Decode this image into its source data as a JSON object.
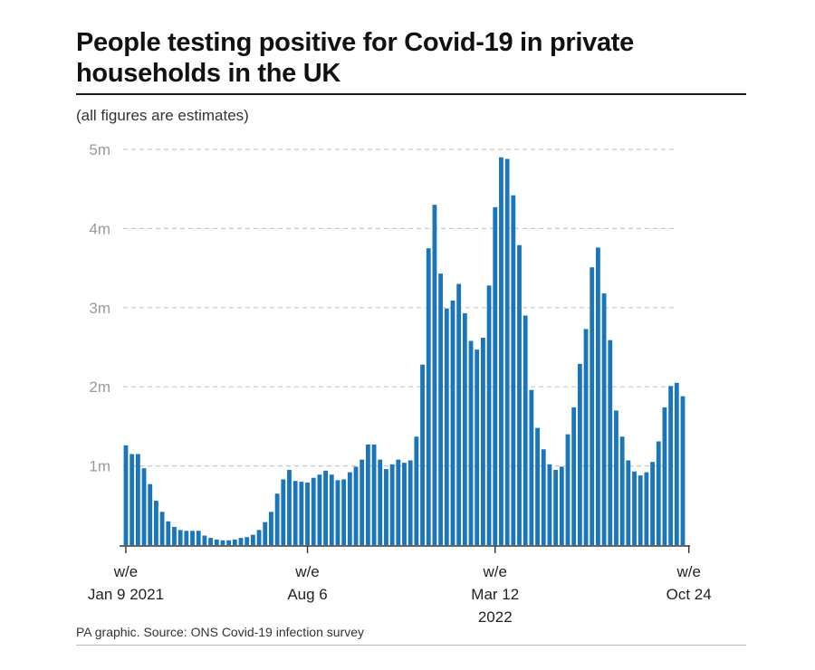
{
  "header": {
    "title": "People testing positive for Covid-19 in private households in the UK",
    "subtitle": "(all figures are estimates)"
  },
  "footer": {
    "source": "PA graphic. Source: ONS Covid-19 infection survey"
  },
  "colors": {
    "bar": "#1a75bb",
    "grid": "#c8c8c8",
    "axis": "#333333"
  },
  "chart_data": {
    "type": "bar",
    "title": "People testing positive for Covid-19 in private households in the UK",
    "subtitle": "(all figures are estimates)",
    "xlabel": "",
    "ylabel": "",
    "ylim": [
      0,
      5000000
    ],
    "yticks": [
      {
        "value": 1000000,
        "label": "1m"
      },
      {
        "value": 2000000,
        "label": "2m"
      },
      {
        "value": 3000000,
        "label": "3m"
      },
      {
        "value": 4000000,
        "label": "4m"
      },
      {
        "value": 5000000,
        "label": "5m"
      }
    ],
    "grid": true,
    "xtick_labels": [
      {
        "index": 0,
        "lines": [
          "w/e",
          "Jan 9 2021"
        ]
      },
      {
        "index": 30,
        "lines": [
          "w/e",
          "Aug 6"
        ]
      },
      {
        "index": 61,
        "lines": [
          "w/e",
          "Mar 12",
          "2022"
        ]
      },
      {
        "index": 93,
        "lines": [
          "w/e",
          "Oct 24"
        ]
      }
    ],
    "series": [
      {
        "name": "People testing positive",
        "values": [
          1260000,
          1150000,
          1150000,
          970000,
          770000,
          560000,
          420000,
          300000,
          230000,
          190000,
          180000,
          180000,
          180000,
          120000,
          90000,
          70000,
          60000,
          60000,
          70000,
          90000,
          100000,
          130000,
          190000,
          290000,
          420000,
          650000,
          830000,
          950000,
          810000,
          800000,
          790000,
          850000,
          890000,
          940000,
          890000,
          820000,
          830000,
          920000,
          990000,
          1080000,
          1270000,
          1270000,
          1080000,
          960000,
          1020000,
          1080000,
          1040000,
          1070000,
          1370000,
          2280000,
          3750000,
          4300000,
          3430000,
          2990000,
          3090000,
          3300000,
          2930000,
          2580000,
          2470000,
          2620000,
          3280000,
          4270000,
          4900000,
          4880000,
          4420000,
          3790000,
          2900000,
          1960000,
          1480000,
          1210000,
          1020000,
          950000,
          990000,
          1400000,
          1740000,
          2290000,
          2730000,
          3510000,
          3760000,
          3180000,
          2590000,
          1700000,
          1370000,
          1070000,
          930000,
          880000,
          920000,
          1050000,
          1310000,
          1740000,
          2010000,
          2050000,
          1880000
        ]
      }
    ]
  }
}
